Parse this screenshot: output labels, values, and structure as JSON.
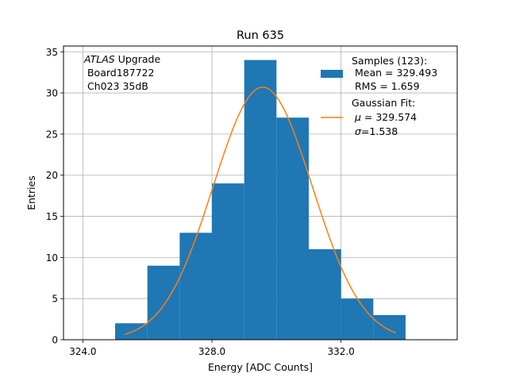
{
  "chart_data": {
    "type": "bar",
    "title": "Run 635",
    "xlabel": "Energy [ADC Counts]",
    "ylabel": "Entries",
    "xlim": [
      323.4,
      335.6
    ],
    "ylim": [
      0,
      35.7
    ],
    "grid": true,
    "xticks": [
      324.0,
      328.0,
      332.0
    ],
    "xtick_labels": [
      "324.0",
      "328.0",
      "332.0"
    ],
    "yticks": [
      0,
      5,
      10,
      15,
      20,
      25,
      30,
      35
    ],
    "ytick_labels": [
      "0",
      "5",
      "10",
      "15",
      "20",
      "25",
      "30",
      "35"
    ],
    "bin_width": 1,
    "bin_edges": [
      325,
      326,
      327,
      328,
      329,
      330,
      331,
      332,
      333,
      334
    ],
    "counts": [
      2,
      9,
      13,
      19,
      34,
      27,
      11,
      5,
      3
    ],
    "bar_color": "#1f77b4",
    "fit": {
      "type": "gaussian",
      "mu": 329.574,
      "sigma": 1.538,
      "amplitude": 30.7,
      "x_range": [
        325.3,
        333.7
      ],
      "color": "#ff7f0e"
    },
    "annotation": {
      "italic": "ATLAS",
      "rest": " Upgrade",
      "line2": " Board187722",
      "line3": " Ch023 35dB"
    },
    "legend": {
      "position": "top-right",
      "samples_title": "Samples (123):",
      "samples_mean": " Mean = 329.493",
      "samples_rms": " RMS = 1.659",
      "fit_title": "Gaussian Fit:",
      "fit_mu_symbol": "μ",
      "fit_mu_text": " = 329.574",
      "fit_sigma_symbol": "σ",
      "fit_sigma_text": "=1.538"
    }
  }
}
